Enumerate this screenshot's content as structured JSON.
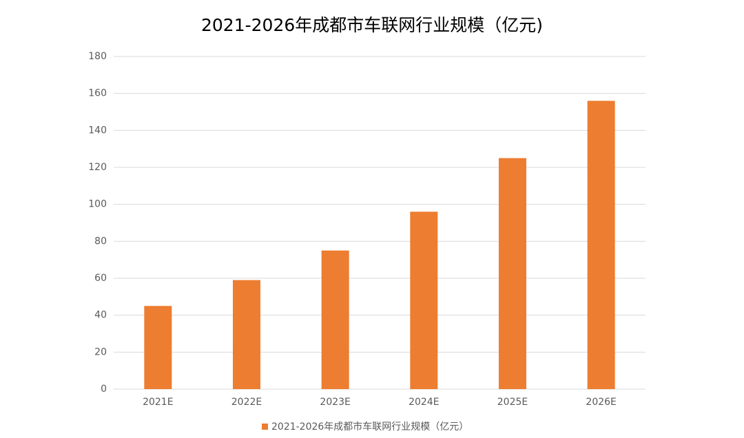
{
  "chart_data": {
    "type": "bar",
    "title": "2021-2026年成都市车联网行业规模（亿元)",
    "categories": [
      "2021E",
      "2022E",
      "2023E",
      "2024E",
      "2025E",
      "2026E"
    ],
    "series": [
      {
        "name": "2021-2026年成都市车联网行业规模（亿元）",
        "color": "#ed7d31",
        "values": [
          45,
          59,
          75,
          96,
          125,
          156
        ]
      }
    ],
    "ylim": [
      0,
      180
    ],
    "yticks": [
      0,
      20,
      40,
      60,
      80,
      100,
      120,
      140,
      160,
      180
    ],
    "grid": true,
    "legend": "bottom"
  }
}
